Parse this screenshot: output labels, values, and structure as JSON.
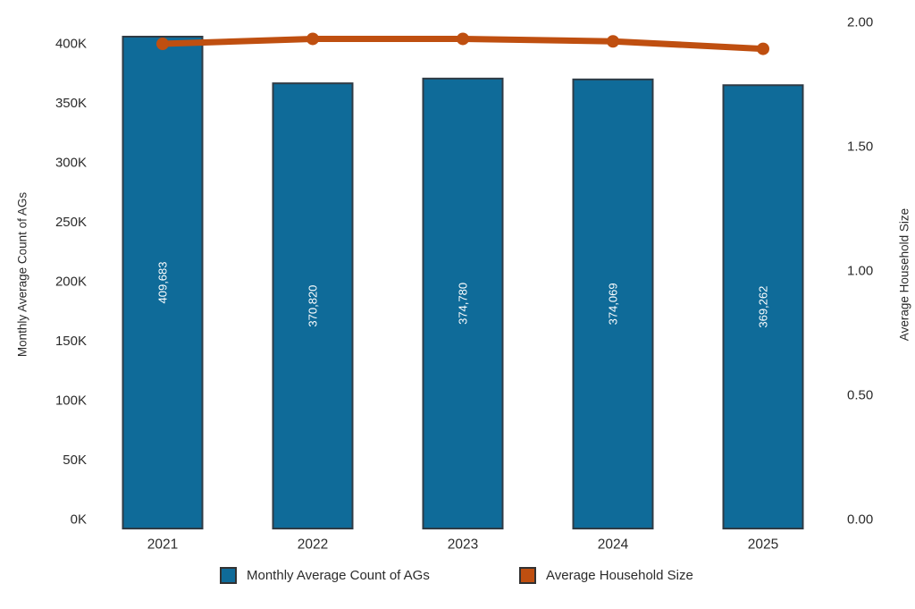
{
  "chart_data": {
    "type": "bar+line combo",
    "title": "",
    "categories": [
      "2021",
      "2022",
      "2023",
      "2024",
      "2025"
    ],
    "series": [
      {
        "name": "Monthly Average Count of AGs",
        "type": "bar",
        "axis": "left",
        "values": [
          409683,
          370820,
          374780,
          374069,
          369262
        ],
        "value_labels": [
          "409,683",
          "370,820",
          "374,780",
          "374,069",
          "369,262"
        ],
        "color": "#0f6b99"
      },
      {
        "name": "Average Household Size",
        "type": "line",
        "axis": "right",
        "values": [
          1.91,
          1.93,
          1.93,
          1.92,
          1.89
        ],
        "color": "#bf4f10"
      }
    ],
    "left_axis": {
      "label": "Monthly Average Count of AGs",
      "tick_labels": [
        "0K",
        "50K",
        "100K",
        "150K",
        "200K",
        "250K",
        "300K",
        "350K",
        "400K"
      ],
      "tick_values": [
        0,
        50000,
        100000,
        150000,
        200000,
        250000,
        300000,
        350000,
        400000
      ],
      "range": [
        0,
        400000
      ]
    },
    "right_axis": {
      "label": "Average Household Size",
      "tick_labels": [
        "0.00",
        "0.50",
        "1.00",
        "1.50",
        "2.00"
      ],
      "tick_values": [
        0,
        0.5,
        1,
        1.5,
        2
      ],
      "range": [
        0,
        2
      ]
    },
    "x_axis": {
      "tick_labels": [
        "2021",
        "2022",
        "2023",
        "2024",
        "2025"
      ]
    },
    "legend": {
      "position": "bottom",
      "items": [
        {
          "label": "Monthly Average Count of AGs",
          "color": "#0f6b99"
        },
        {
          "label": "Average Household Size",
          "color": "#bf4f10"
        }
      ]
    },
    "grid": false,
    "colors": {
      "bar_fill": "#0f6b99",
      "bar_border": "#2f3b45",
      "line": "#bf4f10",
      "bar_value_text": "#ffffff",
      "axis_text": "#2b2b2b"
    }
  }
}
